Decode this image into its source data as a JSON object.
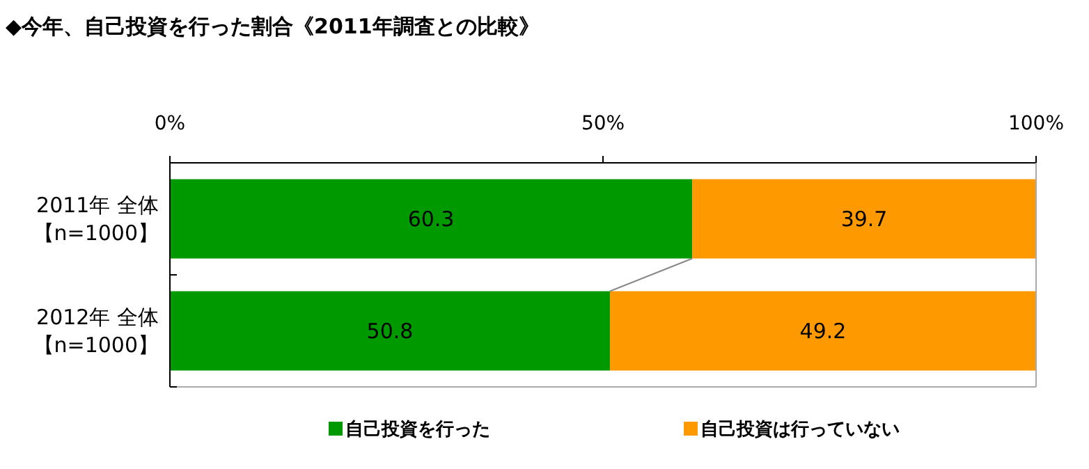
{
  "chart_data": {
    "type": "bar",
    "orientation": "horizontal",
    "stacked": true,
    "title": "◆今年、自己投資を行った割合《2011年調査との比較》",
    "categories": [
      "2011年 全体【n=1000】",
      "2012年 全体【n=1000】"
    ],
    "series": [
      {
        "name": "自己投資を行った",
        "color": "#009900",
        "values": [
          60.3,
          50.8
        ]
      },
      {
        "name": "自己投資は行っていない",
        "color": "#ff9900",
        "values": [
          39.7,
          49.2
        ]
      }
    ],
    "xlim": [
      0,
      100
    ],
    "xticks": [
      {
        "value": 0,
        "label": "0%"
      },
      {
        "value": 50,
        "label": "50%"
      },
      {
        "value": 100,
        "label": "100%"
      }
    ],
    "data_labels": true,
    "legend": "bottom"
  }
}
